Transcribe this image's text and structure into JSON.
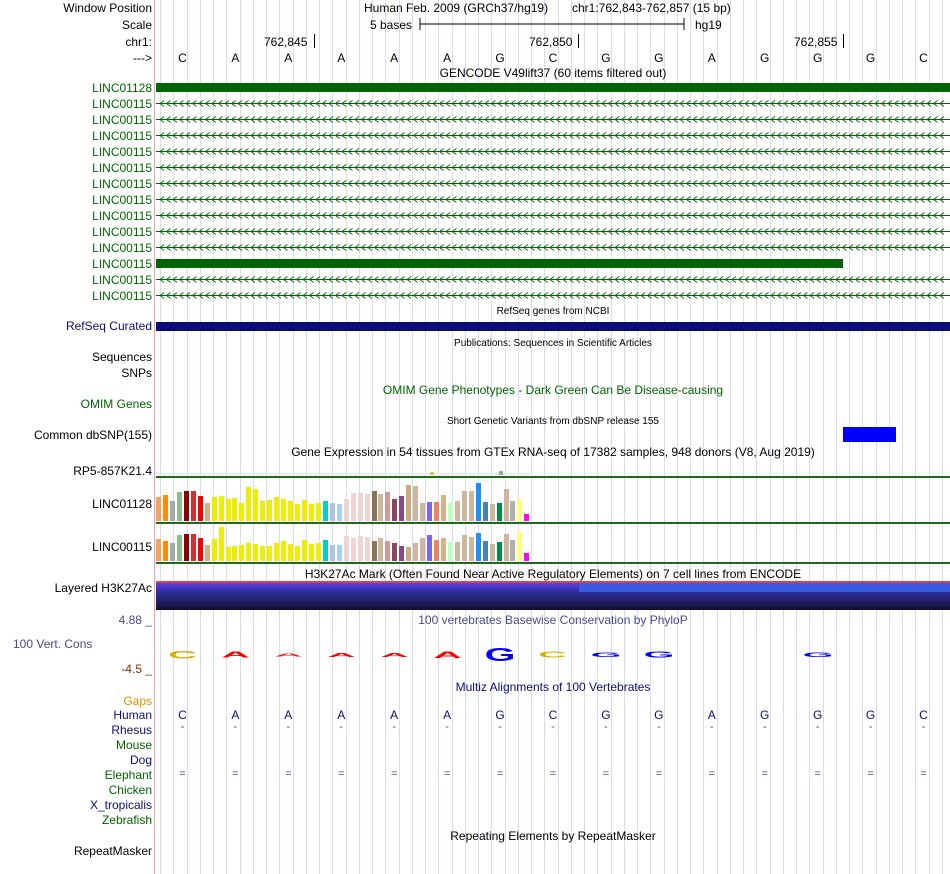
{
  "header": {
    "window_position_label": "Window Position",
    "scale_label": "Scale",
    "chrom_label": "chr1:",
    "strand_label": "--->",
    "assembly": "Human Feb. 2009 (GRCh37/hg19)",
    "position": "chr1:762,843-762,857 (15 bp)",
    "scale_text": "5 bases",
    "db": "hg19",
    "ticks": [
      "762,845",
      "762,850",
      "762,855"
    ],
    "bases": [
      "C",
      "A",
      "A",
      "A",
      "A",
      "A",
      "G",
      "C",
      "G",
      "G",
      "A",
      "G",
      "G",
      "G",
      "C"
    ]
  },
  "gencode": {
    "title": "GENCODE V49lift37 (60 items filtered out)",
    "items": [
      "LINC01128",
      "LINC00115",
      "LINC00115",
      "LINC00115",
      "LINC00115",
      "LINC00115",
      "LINC00115",
      "LINC00115",
      "LINC00115",
      "LINC00115",
      "LINC00115",
      "LINC00115",
      "LINC00115",
      "LINC00115"
    ]
  },
  "refseq": {
    "title": "RefSeq genes from NCBI",
    "label": "RefSeq Curated"
  },
  "publications": {
    "title": "Publications: Sequences in Scientific Articles",
    "labels": [
      "Sequences",
      "SNPs"
    ]
  },
  "omim": {
    "title": "OMIM Gene Phenotypes - Dark Green Can Be Disease-causing",
    "label": "OMIM Genes"
  },
  "dbsnp": {
    "title": "Short Genetic Variants from dbSNP release 155",
    "label": "Common dbSNP(155)"
  },
  "gtex": {
    "title": "Gene Expression in 54 tissues from GTEx RNA-seq of 17382 samples, 948 donors (V8, Aug 2019)",
    "genes": [
      "RP5-857K21.4",
      "LINC01128",
      "LINC00115"
    ]
  },
  "h3k27": {
    "title": "H3K27Ac Mark (Often Found Near Active Regulatory Elements) on 7 cell lines from ENCODE",
    "label": "Layered H3K27Ac"
  },
  "phylop": {
    "title": "100 vertebrates Basewise Conservation by PhyloP",
    "label": "100 Vert. Cons",
    "max": "4.88 _",
    "min": "-4.5 _"
  },
  "multiz": {
    "title": "Multiz Alignments of 100 Vertebrates",
    "gaps_label": "Gaps",
    "species": [
      "Human",
      "Rhesus",
      "Mouse",
      "Dog",
      "Elephant",
      "Chicken",
      "X_tropicalis",
      "Zebrafish"
    ],
    "human_bases": [
      "C",
      "A",
      "A",
      "A",
      "A",
      "A",
      "G",
      "C",
      "G",
      "G",
      "A",
      "G",
      "G",
      "G",
      "C"
    ],
    "rhesus_row": "-",
    "elephant_row": "="
  },
  "repeatmasker": {
    "title": "Repeating Elements by RepeatMasker",
    "label": "RepeatMasker"
  },
  "colors": {
    "gencode_green": "#006400",
    "refseq_navy": "#0c0c78",
    "dbsnp_blue": "#0000ff",
    "gtex_line": "#1d6a1d",
    "phylop_scale_max": "#4a4a8a",
    "phylop_scale_min": "#8b2a00",
    "gaps_gold": "#e09000"
  }
}
